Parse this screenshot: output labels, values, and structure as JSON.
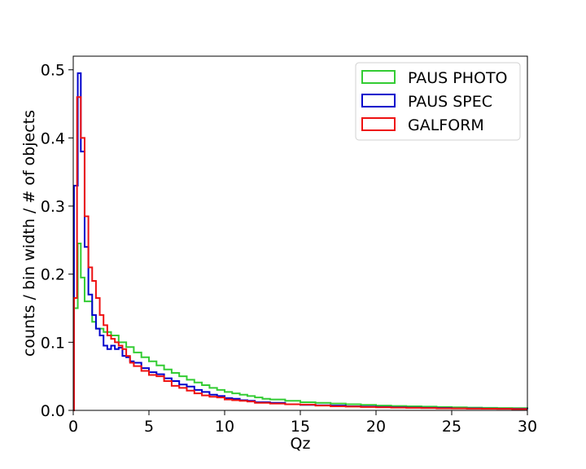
{
  "chart_data": {
    "type": "step-histogram",
    "xlabel": "Qz",
    "ylabel": "counts / bin width / # of objects",
    "xlim": [
      0,
      30
    ],
    "ylim": [
      0,
      0.52
    ],
    "xticks": [
      0,
      5,
      10,
      15,
      20,
      25,
      30
    ],
    "yticks": [
      0.0,
      0.1,
      0.2,
      0.3,
      0.4,
      0.5
    ],
    "xtick_labels": [
      "0",
      "5",
      "10",
      "15",
      "20",
      "25",
      "30"
    ],
    "ytick_labels": [
      "0.0",
      "0.1",
      "0.2",
      "0.3",
      "0.4",
      "0.5"
    ],
    "grid": false,
    "legend_position": "top-right",
    "series": [
      {
        "name": "PAUS PHOTO",
        "color": "#33cc33",
        "points": [
          [
            0,
            0
          ],
          [
            0.05,
            0.15
          ],
          [
            0.3,
            0.245
          ],
          [
            0.5,
            0.195
          ],
          [
            0.75,
            0.16
          ],
          [
            1.25,
            0.13
          ],
          [
            1.5,
            0.12
          ],
          [
            2,
            0.115
          ],
          [
            2.5,
            0.11
          ],
          [
            3,
            0.1
          ],
          [
            3.5,
            0.093
          ],
          [
            4,
            0.085
          ],
          [
            4.5,
            0.078
          ],
          [
            5,
            0.072
          ],
          [
            5.5,
            0.066
          ],
          [
            6,
            0.06
          ],
          [
            6.5,
            0.055
          ],
          [
            7,
            0.05
          ],
          [
            7.5,
            0.045
          ],
          [
            8,
            0.041
          ],
          [
            8.5,
            0.037
          ],
          [
            9,
            0.033
          ],
          [
            9.5,
            0.03
          ],
          [
            10,
            0.027
          ],
          [
            10.5,
            0.025
          ],
          [
            11,
            0.023
          ],
          [
            11.5,
            0.021
          ],
          [
            12,
            0.019
          ],
          [
            12.5,
            0.017
          ],
          [
            13,
            0.016
          ],
          [
            14,
            0.014
          ],
          [
            15,
            0.012
          ],
          [
            16,
            0.011
          ],
          [
            17,
            0.01
          ],
          [
            18,
            0.009
          ],
          [
            19,
            0.008
          ],
          [
            20,
            0.007
          ],
          [
            21,
            0.0065
          ],
          [
            22,
            0.006
          ],
          [
            23,
            0.0055
          ],
          [
            24,
            0.005
          ],
          [
            25,
            0.0045
          ],
          [
            26,
            0.004
          ],
          [
            27,
            0.0038
          ],
          [
            28,
            0.0035
          ],
          [
            29,
            0.0033
          ],
          [
            30,
            0.003
          ]
        ]
      },
      {
        "name": "PAUS SPEC",
        "color": "#0000cc",
        "points": [
          [
            0,
            0
          ],
          [
            0.05,
            0.33
          ],
          [
            0.3,
            0.495
          ],
          [
            0.5,
            0.38
          ],
          [
            0.75,
            0.24
          ],
          [
            1,
            0.17
          ],
          [
            1.25,
            0.14
          ],
          [
            1.5,
            0.12
          ],
          [
            1.75,
            0.11
          ],
          [
            2,
            0.095
          ],
          [
            2.25,
            0.09
          ],
          [
            2.5,
            0.095
          ],
          [
            2.75,
            0.09
          ],
          [
            3,
            0.092
          ],
          [
            3.25,
            0.08
          ],
          [
            3.5,
            0.078
          ],
          [
            3.75,
            0.072
          ],
          [
            4,
            0.07
          ],
          [
            4.5,
            0.062
          ],
          [
            5,
            0.056
          ],
          [
            5.5,
            0.053
          ],
          [
            6,
            0.047
          ],
          [
            6.5,
            0.043
          ],
          [
            7,
            0.038
          ],
          [
            7.5,
            0.035
          ],
          [
            8,
            0.03
          ],
          [
            8.5,
            0.027
          ],
          [
            9,
            0.023
          ],
          [
            9.5,
            0.021
          ],
          [
            10,
            0.018
          ],
          [
            10.5,
            0.017
          ],
          [
            11,
            0.015
          ],
          [
            11.5,
            0.014
          ],
          [
            12,
            0.012
          ],
          [
            13,
            0.011
          ],
          [
            14,
            0.009
          ],
          [
            15,
            0.008
          ],
          [
            16,
            0.0075
          ],
          [
            17,
            0.007
          ],
          [
            18,
            0.006
          ],
          [
            19,
            0.0055
          ],
          [
            20,
            0.005
          ],
          [
            21,
            0.0045
          ],
          [
            22,
            0.004
          ],
          [
            23,
            0.0038
          ],
          [
            24,
            0.0035
          ],
          [
            25,
            0.003
          ],
          [
            26,
            0.0028
          ],
          [
            27,
            0.0026
          ],
          [
            28,
            0.0024
          ],
          [
            29,
            0.0022
          ],
          [
            30,
            0.002
          ]
        ]
      },
      {
        "name": "GALFORM",
        "color": "#ee1111",
        "points": [
          [
            0,
            0
          ],
          [
            0.05,
            0.165
          ],
          [
            0.25,
            0.46
          ],
          [
            0.5,
            0.4
          ],
          [
            0.75,
            0.285
          ],
          [
            1,
            0.21
          ],
          [
            1.25,
            0.19
          ],
          [
            1.5,
            0.165
          ],
          [
            1.75,
            0.14
          ],
          [
            2,
            0.125
          ],
          [
            2.25,
            0.11
          ],
          [
            2.5,
            0.105
          ],
          [
            2.75,
            0.1
          ],
          [
            3,
            0.095
          ],
          [
            3.25,
            0.09
          ],
          [
            3.5,
            0.08
          ],
          [
            3.75,
            0.07
          ],
          [
            4,
            0.065
          ],
          [
            4.5,
            0.058
          ],
          [
            5,
            0.052
          ],
          [
            5.5,
            0.05
          ],
          [
            6,
            0.043
          ],
          [
            6.5,
            0.036
          ],
          [
            7,
            0.033
          ],
          [
            7.5,
            0.029
          ],
          [
            8,
            0.025
          ],
          [
            8.5,
            0.022
          ],
          [
            9,
            0.02
          ],
          [
            9.5,
            0.019
          ],
          [
            10,
            0.016
          ],
          [
            10.5,
            0.015
          ],
          [
            11,
            0.014
          ],
          [
            11.5,
            0.013
          ],
          [
            12,
            0.011
          ],
          [
            13,
            0.01
          ],
          [
            14,
            0.009
          ],
          [
            15,
            0.0085
          ],
          [
            16,
            0.007
          ],
          [
            17,
            0.006
          ],
          [
            18,
            0.0055
          ],
          [
            19,
            0.005
          ],
          [
            20,
            0.0045
          ],
          [
            21,
            0.004
          ],
          [
            22,
            0.0038
          ],
          [
            23,
            0.0035
          ],
          [
            24,
            0.003
          ],
          [
            25,
            0.0028
          ],
          [
            26,
            0.0026
          ],
          [
            27,
            0.0024
          ],
          [
            28,
            0.0022
          ],
          [
            29,
            0.002
          ],
          [
            30,
            0.002
          ]
        ]
      }
    ]
  }
}
